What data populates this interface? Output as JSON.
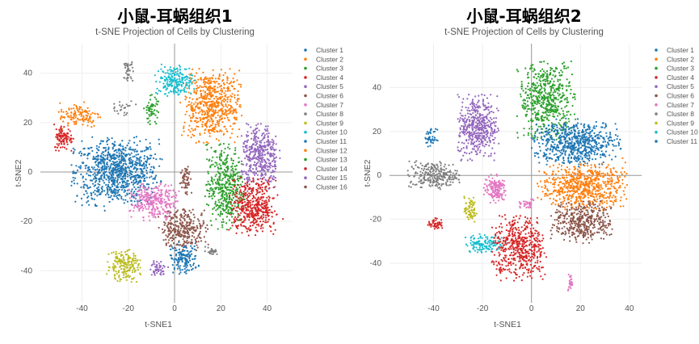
{
  "chart_data": [
    {
      "type": "scatter",
      "title": "小鼠-耳蜗组织1",
      "subtitle": "t-SNE Projection of Cells by Clustering",
      "xlabel": "t-SNE1",
      "ylabel": "t-SNE2",
      "xlim": [
        -58,
        51
      ],
      "ylim": [
        -53,
        52
      ],
      "xticks": [
        -40,
        -20,
        0,
        20,
        40
      ],
      "yticks": [
        -40,
        -20,
        0,
        20,
        40
      ],
      "grid": true,
      "zero_lines": true,
      "legend_position": "right",
      "legend": [
        "Cluster 1",
        "Cluster 2",
        "Cluster 3",
        "Cluster 4",
        "Cluster 5",
        "Cluster 6",
        "Cluster 7",
        "Cluster 8",
        "Cluster 9",
        "Cluster 10",
        "Cluster 11",
        "Cluster 12",
        "Cluster 13",
        "Cluster 14",
        "Cluster 15",
        "Cluster 16"
      ],
      "colors": [
        "#1f77b4",
        "#ff7f0e",
        "#2ca02c",
        "#d62728",
        "#9467bd",
        "#8c564b",
        "#e377c2",
        "#7f7f7f",
        "#bcbd22",
        "#17becf",
        "#1f77b4",
        "#ff7f0e",
        "#2ca02c",
        "#d62728",
        "#9467bd",
        "#8c564b"
      ],
      "clusters": [
        {
          "cluster": 1,
          "center": [
            -25,
            0
          ],
          "spread": [
            9,
            6.5
          ],
          "n": 900
        },
        {
          "cluster": 11,
          "center": [
            4,
            -35
          ],
          "spread": [
            3,
            3
          ],
          "n": 150
        },
        {
          "cluster": 2,
          "center": [
            16,
            27
          ],
          "spread": [
            6,
            7
          ],
          "n": 600
        },
        {
          "cluster": 12,
          "center": [
            -41,
            23
          ],
          "spread": [
            4.5,
            2.5
          ],
          "n": 120
        },
        {
          "cluster": 4,
          "center": [
            -48,
            14
          ],
          "spread": [
            2,
            2.5
          ],
          "n": 100
        },
        {
          "cluster": 10,
          "center": [
            0,
            37
          ],
          "spread": [
            4,
            3
          ],
          "n": 200
        },
        {
          "cluster": 3,
          "center": [
            22,
            -6
          ],
          "spread": [
            4,
            8
          ],
          "n": 450
        },
        {
          "cluster": 5,
          "center": [
            37,
            6
          ],
          "spread": [
            4,
            6.5
          ],
          "n": 400
        },
        {
          "cluster": 14,
          "center": [
            34,
            -14
          ],
          "spread": [
            5,
            5.5
          ],
          "n": 450
        },
        {
          "cluster": 7,
          "center": [
            -9,
            -12
          ],
          "spread": [
            5,
            3.5
          ],
          "n": 300
        },
        {
          "cluster": 6,
          "center": [
            4,
            -23
          ],
          "spread": [
            5,
            4
          ],
          "n": 300
        },
        {
          "cluster": 9,
          "center": [
            -22,
            -38
          ],
          "spread": [
            3.5,
            3
          ],
          "n": 200
        },
        {
          "cluster": 13,
          "center": [
            -10,
            25
          ],
          "spread": [
            1.5,
            3
          ],
          "n": 60
        },
        {
          "cluster": 8,
          "center": [
            -20,
            41
          ],
          "spread": [
            1,
            2
          ],
          "n": 40
        },
        {
          "cluster": 15,
          "center": [
            -7,
            -39
          ],
          "spread": [
            2,
            1.5
          ],
          "n": 50
        },
        {
          "cluster": 16,
          "center": [
            5,
            -3
          ],
          "spread": [
            1.2,
            3
          ],
          "n": 60
        },
        {
          "cluster": 8,
          "center": [
            16,
            -32
          ],
          "spread": [
            1.3,
            0.8
          ],
          "n": 30
        },
        {
          "cluster": 8,
          "center": [
            -22,
            26
          ],
          "spread": [
            2.5,
            1.5
          ],
          "n": 25
        }
      ]
    },
    {
      "type": "scatter",
      "title": "小鼠-耳蜗组织2",
      "subtitle": "t-SNE Projection of Cells by Clustering",
      "xlabel": "t-SNE1",
      "ylabel": "t-SNE2",
      "xlim": [
        -58,
        45
      ],
      "ylim": [
        -58,
        60
      ],
      "xticks": [
        -40,
        -20,
        0,
        20,
        40
      ],
      "yticks": [
        -40,
        -20,
        0,
        20,
        40
      ],
      "grid": true,
      "zero_lines": true,
      "legend_position": "right",
      "legend": [
        "Cluster 1",
        "Cluster 2",
        "Cluster 3",
        "Cluster 4",
        "Cluster 5",
        "Cluster 6",
        "Cluster 7",
        "Cluster 8",
        "Cluster 9",
        "Cluster 10",
        "Cluster 11"
      ],
      "colors": [
        "#1f77b4",
        "#ff7f0e",
        "#2ca02c",
        "#d62728",
        "#9467bd",
        "#8c564b",
        "#e377c2",
        "#7f7f7f",
        "#bcbd22",
        "#17becf",
        "#1f77b4"
      ],
      "clusters": [
        {
          "cluster": 3,
          "center": [
            6,
            34
          ],
          "spread": [
            5.5,
            8.5
          ],
          "n": 550
        },
        {
          "cluster": 1,
          "center": [
            18,
            15
          ],
          "spread": [
            8.5,
            5
          ],
          "n": 650
        },
        {
          "cluster": 2,
          "center": [
            21,
            -5
          ],
          "spread": [
            8.5,
            5
          ],
          "n": 650
        },
        {
          "cluster": 6,
          "center": [
            21,
            -21
          ],
          "spread": [
            6,
            4.5
          ],
          "n": 400
        },
        {
          "cluster": 5,
          "center": [
            -22,
            22
          ],
          "spread": [
            4,
            7
          ],
          "n": 450
        },
        {
          "cluster": 8,
          "center": [
            -40,
            0
          ],
          "spread": [
            5,
            3
          ],
          "n": 250
        },
        {
          "cluster": 7,
          "center": [
            -15,
            -6
          ],
          "spread": [
            2.2,
            3
          ],
          "n": 150
        },
        {
          "cluster": 9,
          "center": [
            -25,
            -16
          ],
          "spread": [
            1.2,
            3
          ],
          "n": 70
        },
        {
          "cluster": 4,
          "center": [
            -39,
            -22
          ],
          "spread": [
            1.5,
            1.2
          ],
          "n": 50
        },
        {
          "cluster": 10,
          "center": [
            -19,
            -31
          ],
          "spread": [
            4,
            2
          ],
          "n": 130
        },
        {
          "cluster": 4,
          "center": [
            -5,
            -33
          ],
          "spread": [
            5.5,
            7
          ],
          "n": 500
        },
        {
          "cluster": 11,
          "center": [
            -41,
            17
          ],
          "spread": [
            1.3,
            2
          ],
          "n": 40
        },
        {
          "cluster": 7,
          "center": [
            16,
            -49
          ],
          "spread": [
            0.5,
            2
          ],
          "n": 25
        },
        {
          "cluster": 7,
          "center": [
            -2,
            -13
          ],
          "spread": [
            2,
            1.2
          ],
          "n": 30
        }
      ]
    }
  ]
}
